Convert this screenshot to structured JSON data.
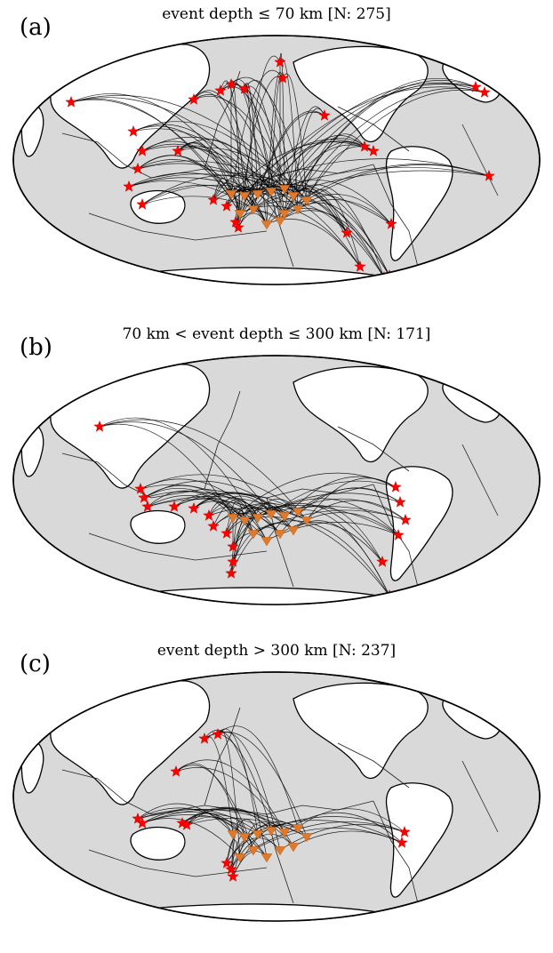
{
  "panels": [
    {
      "letter": "(a)",
      "title": "event depth ≤ 70 km [N: 275]",
      "layout": "pacific-center"
    },
    {
      "letter": "(b)",
      "title": "70 km < event depth ≤ 300 km [N: 171]",
      "layout": "pacific-center"
    },
    {
      "letter": "(c)",
      "title": "event depth > 300 km [N: 237]",
      "layout": "pacific-center"
    }
  ],
  "colors": {
    "ocean": "#d9d9d9",
    "land": "#ffffff",
    "event_star": "#ff0000",
    "station_triangle": "#e07a2a",
    "ray": "#000000"
  },
  "icons": {
    "event": "red-star-icon",
    "station": "orange-triangle-icon"
  }
}
